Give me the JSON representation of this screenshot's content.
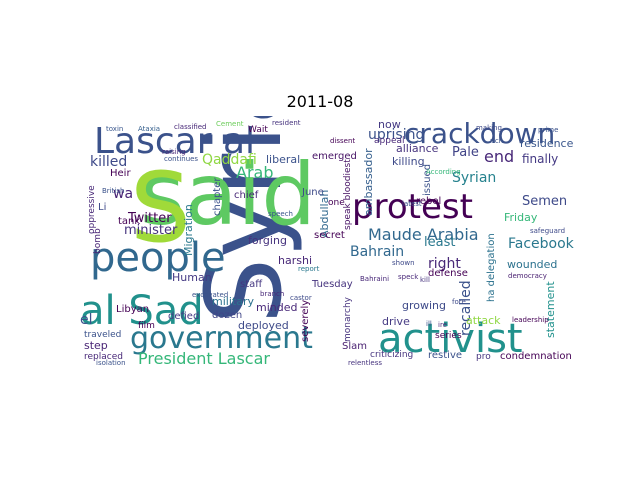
{
  "title": "2011-08",
  "words": [
    {
      "text": "Syria",
      "color": "#3b528b",
      "size": "xl",
      "rotate": -90
    },
    {
      "text": "said",
      "color": "#5ec962",
      "size": "xl"
    },
    {
      "text": "Lascar al",
      "color": "#3b528b",
      "size": "l"
    },
    {
      "text": "al Sad",
      "color": "#21918c",
      "size": "l"
    },
    {
      "text": "people",
      "color": "#31688e",
      "size": "l"
    },
    {
      "text": "activist",
      "color": "#21918c",
      "size": "l"
    },
    {
      "text": "government",
      "color": "#2a788e",
      "size": "l"
    },
    {
      "text": "protest",
      "color": "#440154",
      "size": "l"
    },
    {
      "text": "crackdown",
      "color": "#3b528b",
      "size": "l"
    },
    {
      "text": "S",
      "color": "#a0da39",
      "size": "l"
    },
    {
      "text": "Arab",
      "color": "#35b779",
      "size": "m"
    },
    {
      "text": "Maude Arabia",
      "color": "#31688e",
      "size": "m"
    },
    {
      "text": "President Lascar",
      "color": "#35b779",
      "size": "m"
    },
    {
      "text": "killed",
      "color": "#3e4a89",
      "size": "m"
    },
    {
      "text": "Bahrain",
      "color": "#31688e",
      "size": "m"
    },
    {
      "text": "Facebook",
      "color": "#2a788e",
      "size": "m"
    },
    {
      "text": "Syrian",
      "color": "#26828e",
      "size": "m"
    },
    {
      "text": "end",
      "color": "#482878",
      "size": "m"
    },
    {
      "text": "recalled",
      "color": "#3b528b",
      "size": "m"
    },
    {
      "text": "Qaddafi",
      "color": "#90d743",
      "size": "m"
    },
    {
      "text": "uprising",
      "color": "#3b528b",
      "size": "m"
    },
    {
      "text": "Twitter",
      "color": "#440154",
      "size": "m"
    },
    {
      "text": "minister",
      "color": "#46337e",
      "size": "m"
    },
    {
      "text": "right",
      "color": "#482878",
      "size": "m"
    },
    {
      "text": "least",
      "color": "#2a788e",
      "size": "m"
    },
    {
      "text": "wa",
      "color": "#482475",
      "size": "m"
    },
    {
      "text": "el",
      "color": "#3b528b",
      "size": "m"
    },
    {
      "text": "Semen",
      "color": "#3e4a89",
      "size": "m"
    },
    {
      "text": "Pale",
      "color": "#414487",
      "size": "m"
    },
    {
      "text": "finally",
      "color": "#443983",
      "size": "m"
    },
    {
      "text": "killing",
      "color": "#3e4a89",
      "size": "s"
    },
    {
      "text": "ambassador",
      "color": "#355f8d",
      "size": "s"
    },
    {
      "text": "Abdullah",
      "color": "#31688e",
      "size": "s"
    },
    {
      "text": "alliance",
      "color": "#46337e",
      "size": "s"
    },
    {
      "text": "residence",
      "color": "#39568c",
      "size": "s"
    },
    {
      "text": "now",
      "color": "#443983",
      "size": "s"
    },
    {
      "text": "Friday",
      "color": "#35b779",
      "size": "s"
    },
    {
      "text": "wounded",
      "color": "#2c728e",
      "size": "s"
    },
    {
      "text": "statement",
      "color": "#21918c",
      "size": "s"
    },
    {
      "text": "Human",
      "color": "#443983",
      "size": "s"
    },
    {
      "text": "military",
      "color": "#2c728e",
      "size": "s"
    },
    {
      "text": "deployed",
      "color": "#3e4a89",
      "size": "s"
    },
    {
      "text": "minded",
      "color": "#482878",
      "size": "s"
    },
    {
      "text": "growing",
      "color": "#3e4a89",
      "size": "s"
    },
    {
      "text": "attack",
      "color": "#90d743",
      "size": "s"
    },
    {
      "text": "drive",
      "color": "#443983",
      "size": "s"
    },
    {
      "text": "Slam",
      "color": "#481f70",
      "size": "s"
    },
    {
      "text": "step",
      "color": "#482475",
      "size": "s"
    },
    {
      "text": "replaced",
      "color": "#482878",
      "size": "s"
    },
    {
      "text": "traveled",
      "color": "#3b528b",
      "size": "s"
    },
    {
      "text": "Libyan",
      "color": "#440154",
      "size": "s"
    },
    {
      "text": "film",
      "color": "#440154",
      "size": "s"
    },
    {
      "text": "defied",
      "color": "#443983",
      "size": "s"
    },
    {
      "text": "dozen",
      "color": "#404688",
      "size": "s"
    },
    {
      "text": "forging",
      "color": "#46337e",
      "size": "s"
    },
    {
      "text": "secret",
      "color": "#440154",
      "size": "s"
    },
    {
      "text": "June",
      "color": "#3e4a89",
      "size": "s"
    },
    {
      "text": "Tuesday",
      "color": "#46337e",
      "size": "s"
    },
    {
      "text": "harshi",
      "color": "#482878",
      "size": "s"
    },
    {
      "text": "severely",
      "color": "#440154",
      "size": "s"
    },
    {
      "text": "liberal",
      "color": "#3b528b",
      "size": "s"
    },
    {
      "text": "emerged",
      "color": "#471365",
      "size": "s"
    },
    {
      "text": "chief",
      "color": "#482878",
      "size": "s"
    },
    {
      "text": "staff",
      "color": "#453781",
      "size": "s"
    },
    {
      "text": "Migration",
      "color": "#2a788e",
      "size": "s"
    },
    {
      "text": "chapter",
      "color": "#3b528b",
      "size": "s"
    },
    {
      "text": "tank",
      "color": "#440154",
      "size": "s"
    },
    {
      "text": "bomb",
      "color": "#482475",
      "size": "s"
    },
    {
      "text": "Heir",
      "color": "#440154",
      "size": "s"
    },
    {
      "text": "Li",
      "color": "#3e4a89",
      "size": "s"
    },
    {
      "text": "rebel",
      "color": "#440154",
      "size": "s"
    },
    {
      "text": "issued",
      "color": "#3b528b",
      "size": "s"
    },
    {
      "text": "series",
      "color": "#440154",
      "size": "s"
    },
    {
      "text": "restive",
      "color": "#3b528b",
      "size": "s"
    },
    {
      "text": "criticizing",
      "color": "#46337e",
      "size": "s"
    },
    {
      "text": "pro",
      "color": "#46337e",
      "size": "s"
    },
    {
      "text": "condemnation",
      "color": "#440154",
      "size": "s"
    },
    {
      "text": "defense",
      "color": "#440154",
      "size": "s"
    },
    {
      "text": "ha delegation",
      "color": "#2c728e",
      "size": "s"
    },
    {
      "text": "speak bloodiest",
      "color": "#471365",
      "size": "s"
    },
    {
      "text": "monarchy",
      "color": "#46337e",
      "size": "s"
    },
    {
      "text": "one",
      "color": "#440154",
      "size": "s"
    },
    {
      "text": "Wait",
      "color": "#440154",
      "size": "s"
    },
    {
      "text": "appeal",
      "color": "#482878",
      "size": "s"
    },
    {
      "text": "oppressive",
      "color": "#482878",
      "size": "s"
    },
    {
      "text": "toxin",
      "color": "#39568c",
      "size": "xs"
    },
    {
      "text": "Ataxia",
      "color": "#355f8d",
      "size": "xs"
    },
    {
      "text": "classified",
      "color": "#482878",
      "size": "xs"
    },
    {
      "text": "Cement",
      "color": "#6ccd5a",
      "size": "xs"
    },
    {
      "text": "resident",
      "color": "#46337e",
      "size": "xs"
    },
    {
      "text": "continues",
      "color": "#3b528b",
      "size": "xs"
    },
    {
      "text": "speech",
      "color": "#39568c",
      "size": "xs"
    },
    {
      "text": "report",
      "color": "#2a788e",
      "size": "xs"
    },
    {
      "text": "shown",
      "color": "#3e4a89",
      "size": "xs"
    },
    {
      "text": "democracy",
      "color": "#481f70",
      "size": "xs"
    },
    {
      "text": "leadership",
      "color": "#440154",
      "size": "xs"
    },
    {
      "text": "safeguard",
      "color": "#3e4a89",
      "size": "xs"
    },
    {
      "text": "isolation",
      "color": "#3b528b",
      "size": "xs"
    },
    {
      "text": "relentless",
      "color": "#46337e",
      "size": "xs"
    },
    {
      "text": "excavated",
      "color": "#3b528b",
      "size": "xs"
    },
    {
      "text": "branch",
      "color": "#482878",
      "size": "xs"
    },
    {
      "text": "castor",
      "color": "#3e4a89",
      "size": "xs"
    },
    {
      "text": "British",
      "color": "#3b528b",
      "size": "xs"
    },
    {
      "text": "Bahraini",
      "color": "#482878",
      "size": "xs"
    },
    {
      "text": "latest",
      "color": "#3b528b",
      "size": "xs"
    },
    {
      "text": "kill",
      "color": "#46337e",
      "size": "xs"
    },
    {
      "text": "ill",
      "color": "#3b528b",
      "size": "xs"
    },
    {
      "text": "ire",
      "color": "#482878",
      "size": "xs"
    },
    {
      "text": "fore",
      "color": "#3e4a89",
      "size": "xs"
    },
    {
      "text": "rich",
      "color": "#3b528b",
      "size": "xs"
    },
    {
      "text": "According",
      "color": "#35b779",
      "size": "xs"
    },
    {
      "text": "dissent",
      "color": "#440154",
      "size": "xs"
    },
    {
      "text": "raising",
      "color": "#482878",
      "size": "xs"
    },
    {
      "text": "prime",
      "color": "#3b528b",
      "size": "xs"
    },
    {
      "text": "making",
      "color": "#3e4a89",
      "size": "xs"
    },
    {
      "text": "speck",
      "color": "#482878",
      "size": "xs"
    }
  ]
}
